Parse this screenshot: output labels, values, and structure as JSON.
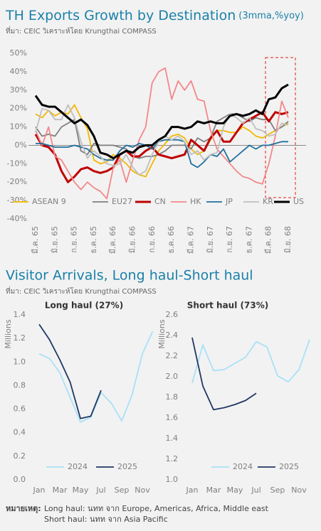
{
  "chart_data": [
    {
      "type": "line",
      "title": "TH Exports Growth by Destination",
      "subtitle": "(3mma,%yoy)",
      "source": "ที่มา: CEIC วิเคราะห์โดย Krungthai COMPASS",
      "categories": [
        "มี.ค. 65",
        null,
        null,
        "มิ.ย. 65",
        null,
        null,
        "ก.ย. 65",
        null,
        null,
        "ธ.ค. 65",
        null,
        null,
        "มี.ค. 66",
        null,
        null,
        "มิ.ย. 66",
        null,
        null,
        "ก.ย. 66",
        null,
        null,
        "ธ.ค. 66",
        null,
        null,
        "มี.ค. 67",
        null,
        null,
        "มิ.ย. 67",
        null,
        null,
        "ก.ย. 67",
        null,
        null,
        "ธ.ค. 67",
        null,
        null,
        "มี.ค. 68",
        null,
        null,
        "มิ.ย. 68"
      ],
      "ylim": [
        -40,
        50
      ],
      "yticks": [
        {
          "value": -40,
          "label": "-40%"
        },
        {
          "value": -30,
          "label": "-30%"
        },
        {
          "value": -20,
          "label": "-20%"
        },
        {
          "value": -10,
          "label": "-10%"
        },
        {
          "value": 0,
          "label": "0%"
        },
        {
          "value": 10,
          "label": "10%"
        },
        {
          "value": 20,
          "label": "20%"
        },
        {
          "value": 30,
          "label": "30%"
        },
        {
          "value": 40,
          "label": "40%"
        },
        {
          "value": 50,
          "label": "50%"
        }
      ],
      "grid": false,
      "legend": "bottom",
      "series": [
        {
          "name": "ASEAN 9",
          "color": "#f2b800",
          "values": [
            17,
            15,
            19,
            16,
            18,
            17,
            22,
            15,
            9,
            -8,
            -10,
            -9,
            -5,
            -7,
            -10,
            -14,
            -16,
            -17,
            -10,
            -3,
            1,
            5,
            6,
            4,
            -2,
            -5,
            -3,
            3,
            8,
            8,
            7,
            7,
            10,
            8,
            5,
            4,
            6,
            8,
            10,
            12
          ]
        },
        {
          "name": "EU27",
          "color": "#7f7f7f",
          "values": [
            10,
            5,
            6,
            5,
            10,
            12,
            14,
            -3,
            -5,
            1,
            0,
            0,
            0,
            -1,
            -2,
            -6,
            -7,
            -6,
            -6,
            -5,
            -3,
            0,
            0,
            0,
            -2,
            4,
            2,
            4,
            13,
            15,
            17,
            17,
            15,
            13,
            15,
            14,
            14,
            8,
            10,
            13
          ]
        },
        {
          "name": "CN",
          "color": "#c00000",
          "values": [
            6,
            0,
            -1,
            -5,
            -14,
            -20,
            -17,
            -13,
            -12,
            -14,
            -15,
            -14,
            -12,
            -5,
            -3,
            -6,
            -6,
            -3,
            -1,
            -5,
            -6,
            -7,
            -6,
            -5,
            3,
            0,
            -3,
            4,
            8,
            2,
            2,
            7,
            12,
            14,
            16,
            18,
            13,
            18,
            17,
            18
          ]
        },
        {
          "name": "HK",
          "color": "#f4878a",
          "values": [
            8,
            0,
            10,
            -6,
            -8,
            -14,
            -20,
            -24,
            -20,
            -23,
            -25,
            -29,
            -12,
            -8,
            -20,
            -8,
            3,
            10,
            34,
            40,
            42,
            25,
            35,
            30,
            35,
            25,
            24,
            8,
            -2,
            -6,
            -10,
            -14,
            -17,
            -18,
            -20,
            -21,
            -10,
            5,
            24,
            15
          ]
        },
        {
          "name": "JP",
          "color": "#1f6f9e",
          "values": [
            1,
            1,
            0,
            -1,
            -1,
            -1,
            0,
            -1,
            -2,
            -5,
            -7,
            -8,
            -8,
            -3,
            0,
            -1,
            1,
            0,
            -2,
            2,
            3,
            3,
            3,
            2,
            -10,
            -12,
            -9,
            -5,
            -6,
            -2,
            -9,
            -6,
            -3,
            0,
            -2,
            0,
            0,
            1,
            2,
            2
          ]
        },
        {
          "name": "KR",
          "color": "#bfbfbf",
          "values": [
            7,
            20,
            19,
            14,
            14,
            22,
            15,
            2,
            -7,
            -3,
            -6,
            -10,
            -11,
            -10,
            -5,
            -12,
            -16,
            -14,
            -5,
            2,
            5,
            3,
            5,
            2,
            -5,
            -3,
            -8,
            -5,
            -4,
            10,
            17,
            15,
            12,
            15,
            9,
            8,
            5,
            6,
            12,
            11
          ]
        },
        {
          "name": "US",
          "color": "#000000",
          "values": [
            27,
            22,
            21,
            21,
            18,
            15,
            12,
            14,
            11,
            5,
            -4,
            -5,
            -7,
            -5,
            -3,
            -4,
            -1,
            0,
            0,
            3,
            5,
            10,
            10,
            9,
            10,
            13,
            12,
            13,
            12,
            12,
            16,
            17,
            16,
            17,
            19,
            17,
            25,
            26,
            31,
            33
          ]
        }
      ]
    },
    {
      "type": "line",
      "title": "Long haul (27%)",
      "ylabel": "Millions",
      "categories": [
        "Jan",
        null,
        "Mar",
        null,
        "May",
        null,
        "Jul",
        null,
        "Sep",
        null,
        "Nov",
        null
      ],
      "ylim": [
        0,
        1.4
      ],
      "yticks": [
        {
          "value": 0,
          "label": "0.0"
        },
        {
          "value": 0.2,
          "label": "0.2"
        },
        {
          "value": 0.4,
          "label": "0.4"
        },
        {
          "value": 0.6,
          "label": "0.6"
        },
        {
          "value": 0.8,
          "label": "0.8"
        },
        {
          "value": 1,
          "label": "1.0"
        },
        {
          "value": 1.2,
          "label": "1.2"
        },
        {
          "value": 1.4,
          "label": "1.4"
        }
      ],
      "grid": false,
      "legend": "bottom",
      "series": [
        {
          "name": "2024",
          "color": "#a9e1f7",
          "values": [
            1.07,
            1.03,
            0.91,
            0.7,
            0.49,
            0.53,
            0.74,
            0.65,
            0.5,
            0.72,
            1.07,
            1.26
          ]
        },
        {
          "name": "2025",
          "color": "#1f3864",
          "values": [
            1.32,
            1.19,
            1.02,
            0.83,
            0.52,
            0.54,
            0.76,
            null,
            null,
            null,
            null,
            null
          ]
        }
      ]
    },
    {
      "type": "line",
      "title": "Short haul (73%)",
      "ylabel": "Millions",
      "categories": [
        "Jan",
        null,
        "Mar",
        null,
        "May",
        null,
        "Jul",
        null,
        "Sep",
        null,
        "Nov",
        null
      ],
      "ylim": [
        1,
        2.6
      ],
      "yticks": [
        {
          "value": 1,
          "label": "1.0"
        },
        {
          "value": 1.2,
          "label": "1.2"
        },
        {
          "value": 1.4,
          "label": "1.4"
        },
        {
          "value": 1.6,
          "label": "1.6"
        },
        {
          "value": 1.8,
          "label": "1.8"
        },
        {
          "value": 2,
          "label": "2.0"
        },
        {
          "value": 2.2,
          "label": "2.2"
        },
        {
          "value": 2.4,
          "label": "2.4"
        },
        {
          "value": 2.6,
          "label": "2.6"
        }
      ],
      "grid": false,
      "legend": "bottom",
      "series": [
        {
          "name": "2024",
          "color": "#a9e1f7",
          "values": [
            1.94,
            2.31,
            2.06,
            2.07,
            2.13,
            2.19,
            2.34,
            2.29,
            2.01,
            1.95,
            2.07,
            2.36
          ]
        },
        {
          "name": "2025",
          "color": "#1f3864",
          "values": [
            2.38,
            1.91,
            1.68,
            1.7,
            1.73,
            1.77,
            1.84,
            null,
            null,
            null,
            null,
            null
          ]
        }
      ]
    }
  ],
  "visitor_section": {
    "title": "Visitor Arrivals, Long haul-Short haul",
    "source": "ที่มา: CEIC วิเคราะห์โดย Krungthai COMPASS"
  },
  "note": {
    "label": "หมายเหตุ:",
    "lines": [
      "Long haul: นทท จาก Europe, Americas, Africa, Middle east",
      "Short haul: นทท จาก Asia Pacific"
    ]
  }
}
